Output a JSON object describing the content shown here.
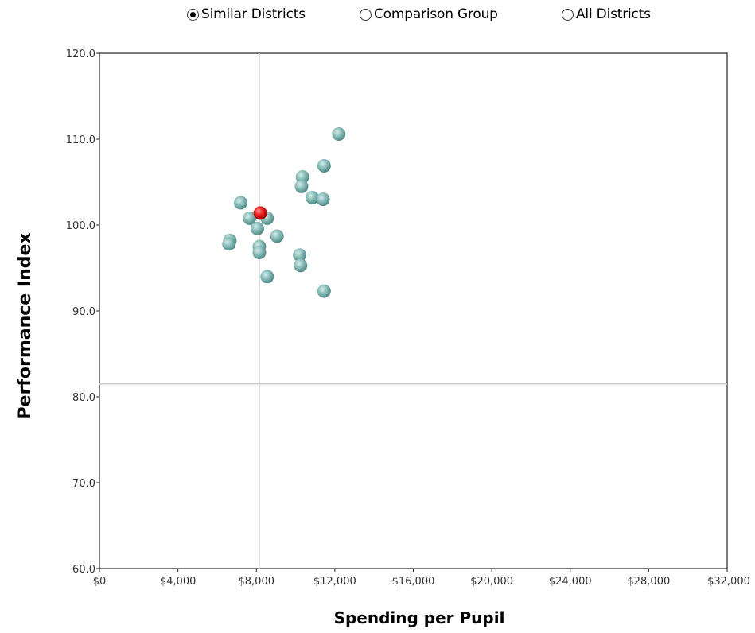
{
  "controls": {
    "options": [
      {
        "label": "Similar Districts",
        "checked": true
      },
      {
        "label": "Comparison Group",
        "checked": false
      },
      {
        "label": "All Districts",
        "checked": false
      }
    ]
  },
  "chart_data": {
    "type": "scatter",
    "title": "",
    "xlabel": "Spending per Pupil",
    "ylabel": "Performance Index",
    "xlim": [
      0,
      32000
    ],
    "ylim": [
      60,
      120
    ],
    "grid": false,
    "x_ticks": [
      0,
      4000,
      8000,
      12000,
      16000,
      20000,
      24000,
      28000,
      32000
    ],
    "x_tick_labels": [
      "$0",
      "$4,000",
      "$8,000",
      "$12,000",
      "$16,000",
      "$20,000",
      "$24,000",
      "$28,000",
      "$32,000"
    ],
    "y_ticks": [
      60,
      70,
      80,
      90,
      100,
      110,
      120
    ],
    "y_tick_labels": [
      "60.0",
      "70.0",
      "80.0",
      "90.0",
      "100.0",
      "110.0",
      "120.0"
    ],
    "reference_lines": {
      "x": 8150,
      "y": 81.5,
      "color": "#cccccc"
    },
    "series": [
      {
        "color": "#7fb3b0",
        "points": [
          {
            "x": 12200,
            "y": 110.6
          },
          {
            "x": 11450,
            "y": 106.9
          },
          {
            "x": 10350,
            "y": 105.6
          },
          {
            "x": 10300,
            "y": 104.5
          },
          {
            "x": 10850,
            "y": 103.2
          },
          {
            "x": 11400,
            "y": 103.0
          },
          {
            "x": 7200,
            "y": 102.6
          },
          {
            "x": 7650,
            "y": 100.8
          },
          {
            "x": 8550,
            "y": 100.8
          },
          {
            "x": 8050,
            "y": 99.6
          },
          {
            "x": 9050,
            "y": 98.7
          },
          {
            "x": 6650,
            "y": 98.2
          },
          {
            "x": 6600,
            "y": 97.8
          },
          {
            "x": 8150,
            "y": 97.5
          },
          {
            "x": 8150,
            "y": 96.8
          },
          {
            "x": 10200,
            "y": 96.5
          },
          {
            "x": 10250,
            "y": 95.3
          },
          {
            "x": 8550,
            "y": 94.0
          },
          {
            "x": 11450,
            "y": 92.3
          }
        ]
      },
      {
        "color": "#e81a1a",
        "points": [
          {
            "x": 8200,
            "y": 101.4
          }
        ]
      }
    ]
  }
}
